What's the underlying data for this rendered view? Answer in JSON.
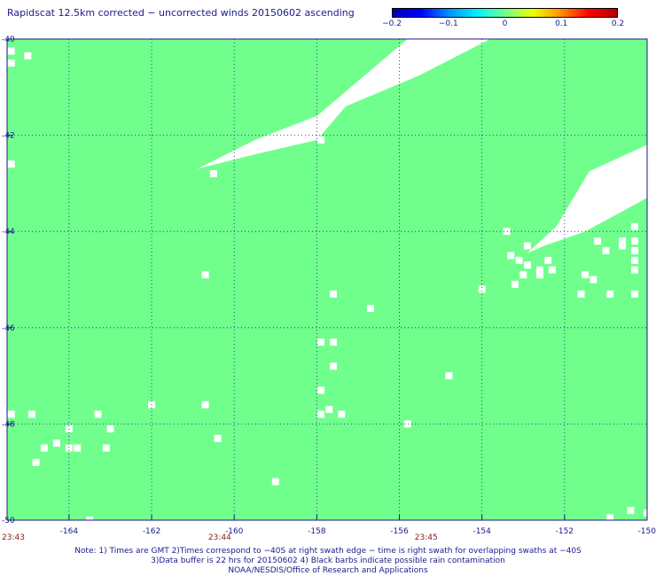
{
  "title": "Rapidscat 12.5km corrected − uncorrected winds 20150602 ascending",
  "colorbar": {
    "ticks": [
      "−0.2",
      "−0.1",
      "0",
      "0.1",
      "0.2"
    ],
    "tick_values": [
      -0.2,
      -0.1,
      0,
      0.1,
      0.2
    ],
    "colors": [
      "#0000b4",
      "#0000ff",
      "#0090ff",
      "#00f0ff",
      "#70ff90",
      "#f0ff00",
      "#ff9000",
      "#ff0000",
      "#b40000"
    ]
  },
  "chart_data": {
    "type": "heatmap",
    "background_color": "#70ff8c",
    "no_data_color": "#ffffff",
    "grid": true,
    "xlim": [
      -165.5,
      -150
    ],
    "ylim": [
      -50,
      -40
    ],
    "x_ticks": [
      "-164",
      "-162",
      "-160",
      "-158",
      "-156",
      "-154",
      "-152",
      "-150"
    ],
    "x_tick_values": [
      -164,
      -162,
      -160,
      -158,
      -156,
      -154,
      -152,
      -150
    ],
    "y_ticks": [
      "-40",
      "-42",
      "-44",
      "-46",
      "-48",
      "-50"
    ],
    "y_tick_values": [
      -40,
      -42,
      -44,
      -46,
      -48,
      -50
    ],
    "time_labels": [
      {
        "text": "23:43",
        "lon": -165.5
      },
      {
        "text": "23:44",
        "lon": -160.5
      },
      {
        "text": "23:45",
        "lon": -155.5
      }
    ],
    "missing_region": [
      [
        -160.9,
        -42.7
      ],
      [
        -159.5,
        -42.1
      ],
      [
        -158.0,
        -41.6
      ],
      [
        -155.8,
        -40.0
      ],
      [
        -153.8,
        -40.0
      ],
      [
        -155.5,
        -40.75
      ],
      [
        -157.3,
        -41.4
      ],
      [
        -158.0,
        -42.1
      ],
      [
        -159.5,
        -42.4
      ]
    ],
    "missing_region_ne": [
      [
        -151.4,
        -42.75
      ],
      [
        -150.0,
        -42.2
      ],
      [
        -150.0,
        -43.3
      ],
      [
        -151.5,
        -44.0
      ],
      [
        -152.5,
        -44.3
      ],
      [
        -152.9,
        -44.45
      ],
      [
        -152.2,
        -43.9
      ]
    ],
    "missing_cells": [
      [
        -165.4,
        -40.25
      ],
      [
        -165.0,
        -40.35
      ],
      [
        -165.4,
        -40.5
      ],
      [
        -165.4,
        -42.6
      ],
      [
        -160.5,
        -42.8
      ],
      [
        -157.9,
        -42.1
      ],
      [
        -151.7,
        -43.4
      ],
      [
        -151.9,
        -43.7
      ],
      [
        -150.6,
        -43.2
      ],
      [
        -150.4,
        -42.9
      ],
      [
        -150.3,
        -43.9
      ],
      [
        -150.6,
        -44.2
      ],
      [
        -150.3,
        -44.2
      ],
      [
        -153.4,
        -44.0
      ],
      [
        -151.2,
        -44.2
      ],
      [
        -150.6,
        -44.3
      ],
      [
        -150.3,
        -44.6
      ],
      [
        -151.0,
        -44.4
      ],
      [
        -150.3,
        -44.4
      ],
      [
        -152.9,
        -44.3
      ],
      [
        -153.1,
        -44.6
      ],
      [
        -153.3,
        -44.5
      ],
      [
        -152.9,
        -44.7
      ],
      [
        -152.6,
        -44.8
      ],
      [
        -152.3,
        -44.8
      ],
      [
        -153.0,
        -44.9
      ],
      [
        -152.6,
        -44.9
      ],
      [
        -151.5,
        -44.9
      ],
      [
        -152.4,
        -44.6
      ],
      [
        -151.3,
        -45.0
      ],
      [
        -150.3,
        -44.8
      ],
      [
        -153.2,
        -45.1
      ],
      [
        -154.0,
        -45.2
      ],
      [
        -150.3,
        -45.3
      ],
      [
        -150.9,
        -45.3
      ],
      [
        -151.6,
        -45.3
      ],
      [
        -160.7,
        -44.9
      ],
      [
        -157.6,
        -45.3
      ],
      [
        -156.7,
        -45.6
      ],
      [
        -157.9,
        -46.3
      ],
      [
        -157.6,
        -46.3
      ],
      [
        -157.6,
        -46.8
      ],
      [
        -157.9,
        -47.3
      ],
      [
        -154.8,
        -47.0
      ],
      [
        -162.0,
        -47.6
      ],
      [
        -160.7,
        -47.6
      ],
      [
        -157.7,
        -47.7
      ],
      [
        -157.4,
        -47.8
      ],
      [
        -157.9,
        -47.8
      ],
      [
        -155.8,
        -48.0
      ],
      [
        -165.4,
        -47.8
      ],
      [
        -164.9,
        -47.8
      ],
      [
        -163.3,
        -47.8
      ],
      [
        -163.0,
        -48.1
      ],
      [
        -164.0,
        -48.1
      ],
      [
        -164.3,
        -48.4
      ],
      [
        -164.0,
        -48.5
      ],
      [
        -163.8,
        -48.5
      ],
      [
        -164.6,
        -48.5
      ],
      [
        -163.1,
        -48.5
      ],
      [
        -164.8,
        -48.8
      ],
      [
        -160.4,
        -48.3
      ],
      [
        -159.0,
        -49.2
      ],
      [
        -163.5,
        -50.0
      ],
      [
        -150.4,
        -49.8
      ],
      [
        -150.0,
        -49.85
      ],
      [
        -150.9,
        -49.95
      ]
    ]
  },
  "notes": [
    "Note: 1) Times are GMT 2)Times correspond to −40S at right swath edge − time is right swath for overlapping swaths at −40S",
    "3)Data buffer is 22 hrs for 20150602 4) Black barbs indicate possible rain contamination",
    "NOAA/NESDIS/Office of Research and Applications"
  ]
}
